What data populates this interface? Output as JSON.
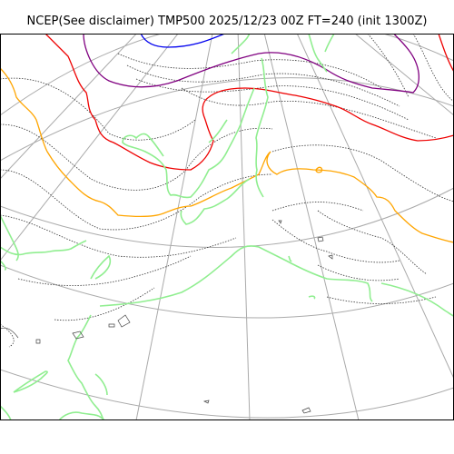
{
  "title": "NCEP(See disclaimer) TMP500 2025/12/23 00Z FT=240 (init 1300Z)",
  "map": {
    "variable": "TMP500",
    "colors": {
      "frame": "#000000",
      "graticule": "#aaaaaa",
      "contour_dotted": "#333333",
      "coastline": "#90ee90",
      "isotherm_blue": "#0000ee",
      "isotherm_purple": "#800080",
      "isotherm_red": "#ee0000",
      "isotherm_orange": "#ffa500",
      "small_islands": "#444444"
    }
  }
}
